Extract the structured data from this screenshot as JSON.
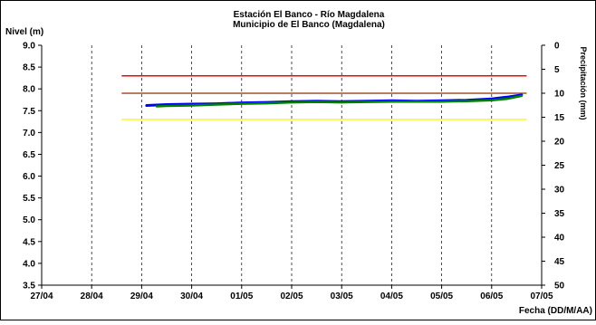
{
  "chart_data": {
    "type": "line",
    "title": "Estación El Banco - Río Magdalena",
    "subtitle": "Municipio de El Banco (Magdalena)",
    "ylabel": "Nivel (m)",
    "xlabel": "Fecha (DD/M/AA)",
    "y2label": "Precipitación (mm)",
    "ylim": [
      3.5,
      9.0
    ],
    "y_ticks": [
      "9.0",
      "8.5",
      "8.0",
      "7.5",
      "7.0",
      "6.5",
      "6.0",
      "5.5",
      "5.0",
      "4.5",
      "4.0",
      "3.5"
    ],
    "y2lim": [
      0,
      50
    ],
    "y2_ticks": [
      "0",
      "5",
      "10",
      "15",
      "20",
      "25",
      "30",
      "35",
      "40",
      "45",
      "50"
    ],
    "y2_reversed": true,
    "x_ticks": [
      "27/04",
      "28/04",
      "29/04",
      "30/04",
      "01/05",
      "02/05",
      "03/05",
      "04/05",
      "05/05",
      "06/05",
      "07/05"
    ],
    "grid": true,
    "thresholds": [
      {
        "value": 8.3,
        "color": "#ff0000"
      },
      {
        "value": 7.9,
        "color": "#a0522d"
      },
      {
        "value": 7.3,
        "color": "#ffff00"
      }
    ],
    "threshold_range": [
      1.6,
      9.7
    ],
    "series": [
      {
        "color": "#0000ff",
        "x": [
          2.1,
          2.5,
          3.0,
          3.5,
          4.0,
          4.5,
          5.0,
          5.5,
          6.0,
          6.5,
          7.0,
          7.5,
          8.0,
          8.5,
          9.0,
          9.3,
          9.6
        ],
        "values": [
          7.62,
          7.64,
          7.65,
          7.66,
          7.68,
          7.69,
          7.71,
          7.72,
          7.71,
          7.72,
          7.73,
          7.72,
          7.73,
          7.74,
          7.77,
          7.81,
          7.86
        ]
      },
      {
        "color": "#008000",
        "x": [
          2.3,
          2.5,
          3.0,
          3.5,
          4.0,
          4.5,
          5.0,
          5.5,
          6.0,
          6.5,
          7.0,
          7.5,
          8.0,
          8.5,
          9.0,
          9.3,
          9.6
        ],
        "values": [
          7.6,
          7.61,
          7.62,
          7.64,
          7.66,
          7.67,
          7.69,
          7.7,
          7.69,
          7.7,
          7.71,
          7.71,
          7.71,
          7.72,
          7.74,
          7.77,
          7.84
        ]
      }
    ]
  }
}
